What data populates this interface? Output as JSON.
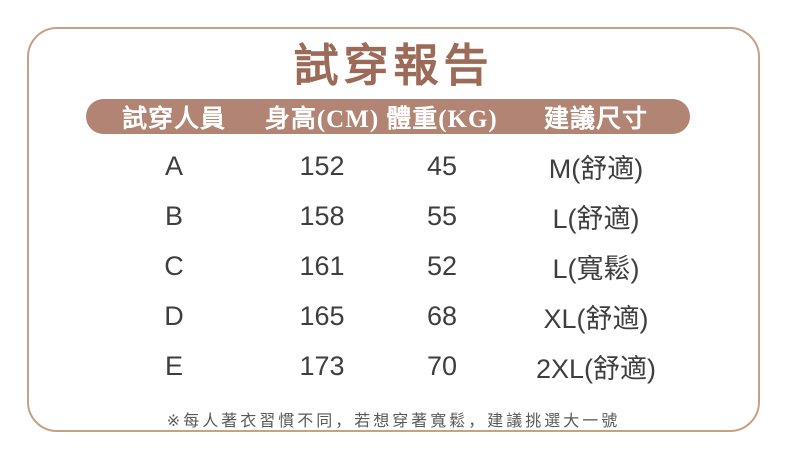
{
  "card": {
    "title": "試穿報告",
    "footnote": "※每人著衣習慣不同，若想穿著寬鬆，建議挑選大一號"
  },
  "table": {
    "headers": [
      "試穿人員",
      "身高(CM)",
      "體重(KG)",
      "建議尺寸"
    ],
    "rows": [
      [
        "A",
        "152",
        "45",
        "M(舒適)"
      ],
      [
        "B",
        "158",
        "55",
        "L(舒適)"
      ],
      [
        "C",
        "161",
        "52",
        "L(寬鬆)"
      ],
      [
        "D",
        "165",
        "68",
        "XL(舒適)"
      ],
      [
        "E",
        "173",
        "70",
        "2XL(舒適)"
      ]
    ]
  },
  "colors": {
    "card_border": "#c6a184",
    "title_text": "#9c6b58",
    "header_bg": "#b18473",
    "header_text": "#ffffff",
    "body_text": "#3e3e3e",
    "footnote_text": "#595959",
    "background": "#ffffff"
  },
  "chart_data": {
    "type": "table",
    "title": "試穿報告",
    "columns": [
      "試穿人員",
      "身高(CM)",
      "體重(KG)",
      "建議尺寸"
    ],
    "rows": [
      {
        "person": "A",
        "height_cm": 152,
        "weight_kg": 45,
        "suggested_size": "M(舒適)"
      },
      {
        "person": "B",
        "height_cm": 158,
        "weight_kg": 55,
        "suggested_size": "L(舒適)"
      },
      {
        "person": "C",
        "height_cm": 161,
        "weight_kg": 52,
        "suggested_size": "L(寬鬆)"
      },
      {
        "person": "D",
        "height_cm": 165,
        "weight_kg": 68,
        "suggested_size": "XL(舒適)"
      },
      {
        "person": "E",
        "height_cm": 173,
        "weight_kg": 70,
        "suggested_size": "2XL(舒適)"
      }
    ],
    "note": "※每人著衣習慣不同，若想穿著寬鬆，建議挑選大一號"
  }
}
